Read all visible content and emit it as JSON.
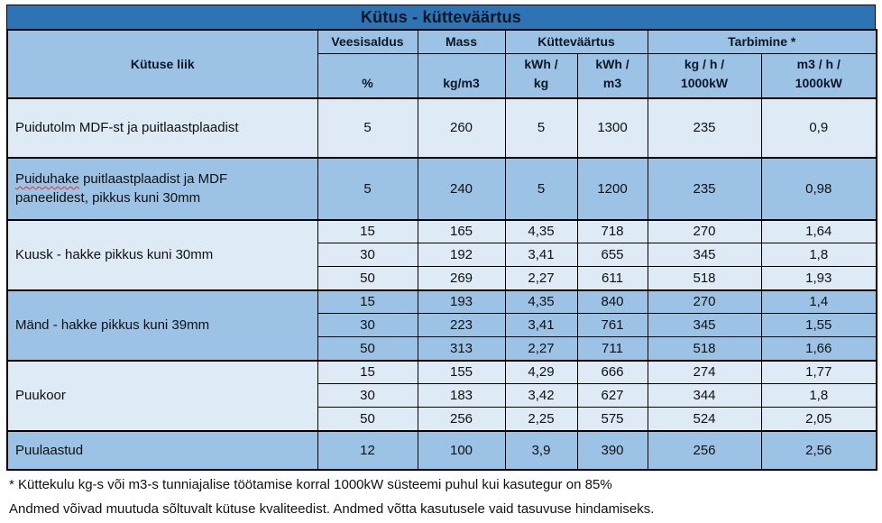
{
  "title": "Kütus - kütteväärtus",
  "colors": {
    "title_bg": "#2E74B5",
    "header_bg": "#9CC2E5",
    "row_light": "#DEEAF6",
    "row_medium": "#9CC2E5",
    "border": "#000000",
    "squiggle": "#E03030"
  },
  "table": {
    "header": {
      "fuel_type": "Kütuse liik",
      "veesisaldus": "Veesisaldus",
      "mass": "Mass",
      "kyttevaartus": "Kütteväärtus",
      "tarbimine": "Tarbimine *",
      "unit_percent": "%",
      "unit_kg_m3": "kg/m3",
      "unit_kwh_kg": "kWh /\nkg",
      "unit_kwh_m3": "kWh /\nm3",
      "unit_kg_h": "kg / h /\n1000kW",
      "unit_m3_h": "m3 / h /\n1000kW"
    },
    "groups": [
      {
        "label": "Puidutolm MDF-st ja puitlaastplaadist",
        "shade": "light",
        "rows": [
          [
            "5",
            "260",
            "5",
            "1300",
            "235",
            "0,9"
          ]
        ]
      },
      {
        "label": "Puiduhake puitlaastplaadist ja MDF paneelidest, pikkus kuni 30mm",
        "shade": "medium",
        "squiggle_word": "Puiduhake",
        "rows": [
          [
            "5",
            "240",
            "5",
            "1200",
            "235",
            "0,98"
          ]
        ]
      },
      {
        "label": "Kuusk - hakke pikkus kuni 30mm",
        "shade": "light",
        "rows": [
          [
            "15",
            "165",
            "4,35",
            "718",
            "270",
            "1,64"
          ],
          [
            "30",
            "192",
            "3,41",
            "655",
            "345",
            "1,8"
          ],
          [
            "50",
            "269",
            "2,27",
            "611",
            "518",
            "1,93"
          ]
        ]
      },
      {
        "label": "Mänd - hakke pikkus kuni 39mm",
        "shade": "medium",
        "rows": [
          [
            "15",
            "193",
            "4,35",
            "840",
            "270",
            "1,4"
          ],
          [
            "30",
            "223",
            "3,41",
            "761",
            "345",
            "1,55"
          ],
          [
            "50",
            "313",
            "2,27",
            "711",
            "518",
            "1,66"
          ]
        ]
      },
      {
        "label": "Puukoor",
        "shade": "light",
        "rows": [
          [
            "15",
            "155",
            "4,29",
            "666",
            "274",
            "1,77"
          ],
          [
            "30",
            "183",
            "3,42",
            "627",
            "344",
            "1,8"
          ],
          [
            "50",
            "256",
            "2,25",
            "575",
            "524",
            "2,05"
          ]
        ]
      },
      {
        "label": "Puulaastud",
        "shade": "medium",
        "rows": [
          [
            "12",
            "100",
            "3,9",
            "390",
            "256",
            "2,56"
          ]
        ]
      }
    ]
  },
  "footnotes": [
    "* Küttekulu kg-s või m3-s tunniajalise töötamise korral 1000kW süsteemi puhul kui kasutegur on 85%",
    "Andmed võivad muutuda sõltuvalt kütuse kvaliteedist. Andmed võtta kasutusele vaid tasuvuse hindamiseks."
  ]
}
